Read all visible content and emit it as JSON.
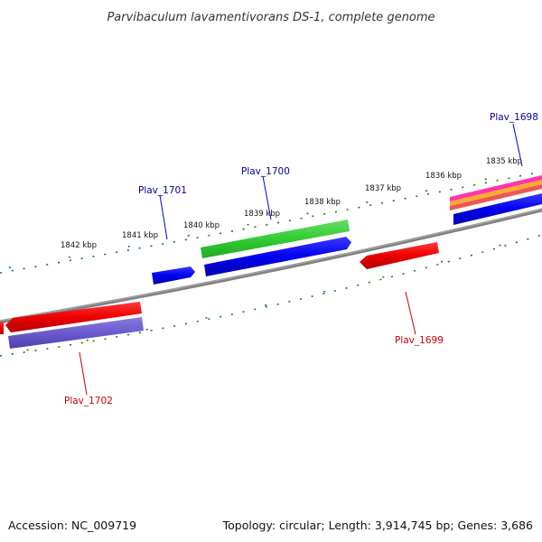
{
  "title": "Parvibaculum lavamentivorans DS-1, complete genome",
  "footer": {
    "accession": "Accession: NC_009719",
    "summary": "Topology: circular; Length: 3,914,745 bp; Genes: 3,686"
  },
  "scale_labels": [
    "1842 kbp",
    "1841 kbp",
    "1840 kbp",
    "1839 kbp",
    "1838 kbp",
    "1837 kbp",
    "1836 kbp",
    "1835 kbp"
  ],
  "genes": [
    {
      "name": "Plav_1698",
      "strand": "+",
      "color": "#0000ee",
      "label": "Plav_1698"
    },
    {
      "name": "Plav_1699",
      "strand": "-",
      "color": "#ee0000",
      "label": "Plav_1699"
    },
    {
      "name": "Plav_1700",
      "strand": "+",
      "color": "#0000ee",
      "label": "Plav_1700"
    },
    {
      "name": "Plav_1701",
      "strand": "+",
      "color": "#0000ee",
      "label": "Plav_1701"
    },
    {
      "name": "Plav_1702",
      "strand": "-",
      "color": "#ee0000",
      "label": "Plav_1702"
    }
  ],
  "colors": {
    "forward_gene": "#0000ee",
    "reverse_gene": "#ee0000",
    "cog_green": "#33cc33",
    "cog_purple": "#6a5acd",
    "backbone": "#808080",
    "ticks": "#1a7a1a"
  }
}
